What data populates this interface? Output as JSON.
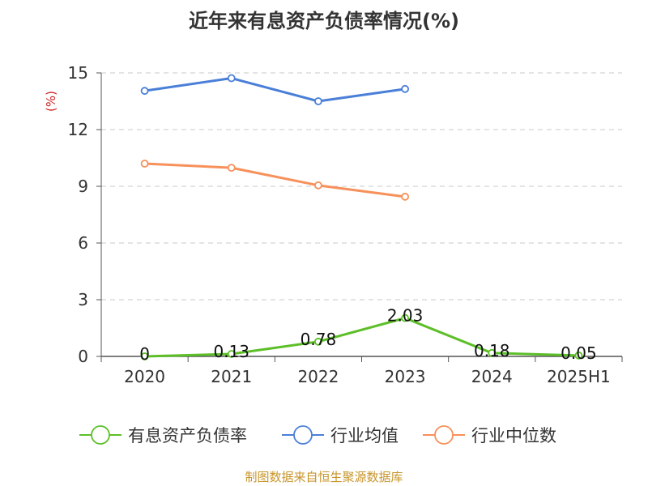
{
  "chart_data": {
    "type": "line",
    "title": "近年来有息资产负债率情况(%)",
    "ylabel": "(%)",
    "ylim": [
      0,
      15
    ],
    "yticks": [
      0,
      3,
      6,
      9,
      12,
      15
    ],
    "categories": [
      "2020",
      "2021",
      "2022",
      "2023",
      "2024",
      "2025H1"
    ],
    "grid": true,
    "legend_position": "bottom",
    "series": [
      {
        "name": "有息资产负债率",
        "color": "#5dbf28",
        "values": [
          0,
          0.13,
          0.78,
          2.03,
          0.18,
          0.05
        ],
        "labels": [
          "0",
          "0.13",
          "0.78",
          "2.03",
          "0.18",
          "0.05"
        ],
        "show_labels": true
      },
      {
        "name": "行业均值",
        "color": "#4a7fd8",
        "values": [
          14.05,
          14.72,
          13.5,
          14.15,
          null,
          null
        ],
        "show_labels": false
      },
      {
        "name": "行业中位数",
        "color": "#f7905a",
        "values": [
          10.2,
          9.98,
          9.05,
          8.45,
          null,
          null
        ],
        "show_labels": false
      }
    ]
  },
  "source": "制图数据来自恒生聚源数据库"
}
